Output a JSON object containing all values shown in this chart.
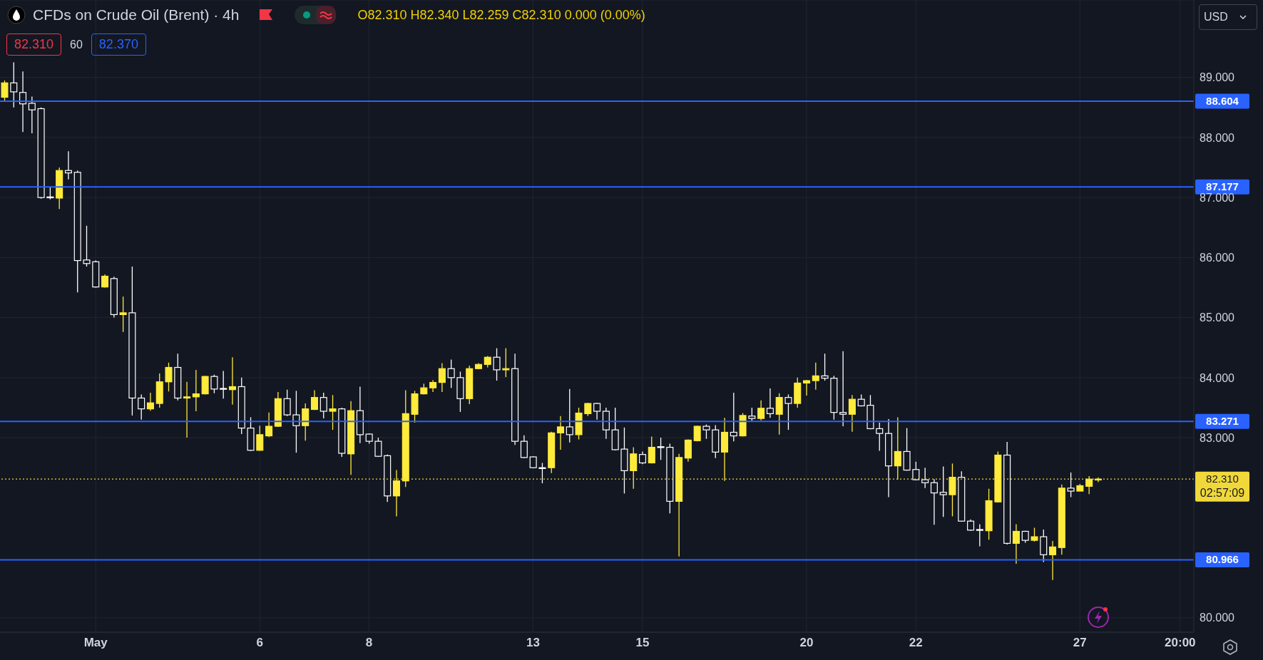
{
  "chart_data": {
    "type": "candlestick",
    "title": "CFDs on Crude Oil (Brent) · 4h",
    "annotations": [
      "O82.310 H82.340 L82.259 C82.310 0.000 (0.00%)",
      "82.310",
      "60",
      "82.370",
      "USD",
      "02:57:09"
    ],
    "categories": [
      null,
      null,
      null,
      null,
      null,
      null,
      null,
      null,
      null,
      null,
      "May",
      null,
      null,
      null,
      null,
      null,
      null,
      null,
      null,
      null,
      null,
      null,
      null,
      null,
      null,
      null,
      null,
      null,
      "6",
      null,
      null,
      null,
      null,
      null,
      null,
      null,
      null,
      null,
      null,
      null,
      "8",
      null,
      null,
      null,
      null,
      null,
      null,
      null,
      null,
      null,
      null,
      null,
      null,
      null,
      null,
      null,
      null,
      null,
      "13",
      null,
      null,
      null,
      null,
      null,
      null,
      null,
      null,
      null,
      null,
      null,
      "15",
      null,
      null,
      null,
      null,
      null,
      null,
      null,
      null,
      null,
      null,
      null,
      null,
      null,
      null,
      null,
      null,
      null,
      "20",
      null,
      null,
      null,
      null,
      null,
      null,
      null,
      null,
      null,
      null,
      null,
      "22",
      null,
      null,
      null,
      null,
      null,
      null,
      null,
      null,
      null,
      null,
      null,
      null,
      null,
      null,
      null,
      null,
      null,
      "27",
      null,
      null,
      null,
      null,
      null,
      null,
      null,
      null,
      null,
      null,
      "20:00",
      null
    ],
    "ohlc": [
      [
        88.67,
        88.95,
        88.6,
        88.91
      ],
      [
        88.91,
        89.25,
        88.5,
        88.76
      ],
      [
        88.75,
        89.1,
        88.09,
        88.56
      ],
      [
        88.57,
        88.68,
        88.07,
        88.46
      ],
      [
        88.48,
        88.5,
        86.98,
        87.0
      ],
      [
        87.01,
        87.18,
        86.97,
        87.0
      ],
      [
        86.99,
        87.5,
        86.81,
        87.45
      ],
      [
        87.45,
        87.77,
        87.3,
        87.41
      ],
      [
        87.42,
        87.45,
        85.42,
        85.95
      ],
      [
        85.96,
        86.53,
        85.85,
        85.9
      ],
      [
        85.93,
        85.95,
        85.5,
        85.51
      ],
      [
        85.51,
        85.72,
        85.5,
        85.69
      ],
      [
        85.65,
        85.68,
        85.0,
        85.05
      ],
      [
        85.05,
        85.35,
        84.76,
        85.08
      ],
      [
        85.08,
        85.85,
        83.37,
        83.66
      ],
      [
        83.66,
        83.72,
        83.3,
        83.48
      ],
      [
        83.48,
        83.75,
        83.45,
        83.58
      ],
      [
        83.57,
        84.07,
        83.5,
        83.93
      ],
      [
        83.93,
        84.25,
        83.77,
        84.17
      ],
      [
        84.17,
        84.4,
        83.62,
        83.66
      ],
      [
        83.66,
        83.93,
        83.0,
        83.68
      ],
      [
        83.68,
        84.13,
        83.44,
        83.73
      ],
      [
        83.73,
        84.03,
        83.72,
        84.02
      ],
      [
        84.02,
        84.05,
        83.74,
        83.81
      ],
      [
        83.82,
        84.11,
        83.65,
        83.81
      ],
      [
        83.8,
        84.34,
        83.55,
        83.85
      ],
      [
        83.85,
        84.0,
        83.06,
        83.16
      ],
      [
        83.16,
        83.34,
        82.78,
        82.79
      ],
      [
        82.79,
        83.2,
        82.78,
        83.05
      ],
      [
        83.03,
        83.42,
        83.01,
        83.19
      ],
      [
        83.19,
        83.76,
        83.18,
        83.65
      ],
      [
        83.65,
        83.8,
        83.36,
        83.38
      ],
      [
        83.38,
        83.78,
        82.75,
        83.2
      ],
      [
        83.2,
        83.57,
        82.95,
        83.48
      ],
      [
        83.47,
        83.79,
        83.46,
        83.67
      ],
      [
        83.67,
        83.75,
        83.32,
        83.44
      ],
      [
        83.44,
        83.71,
        83.13,
        83.48
      ],
      [
        83.48,
        83.5,
        82.68,
        82.74
      ],
      [
        82.73,
        83.61,
        82.38,
        83.45
      ],
      [
        83.45,
        83.85,
        82.91,
        83.05
      ],
      [
        83.06,
        83.07,
        82.9,
        82.94
      ],
      [
        82.94,
        83.0,
        82.68,
        82.69
      ],
      [
        82.7,
        82.72,
        81.93,
        82.03
      ],
      [
        82.03,
        82.46,
        81.69,
        82.28
      ],
      [
        82.28,
        83.79,
        82.18,
        83.4
      ],
      [
        83.39,
        83.78,
        83.25,
        83.73
      ],
      [
        83.73,
        83.9,
        83.72,
        83.83
      ],
      [
        83.83,
        83.96,
        83.76,
        83.92
      ],
      [
        83.92,
        84.24,
        83.76,
        84.15
      ],
      [
        84.15,
        84.3,
        83.83,
        84.0
      ],
      [
        84.0,
        84.1,
        83.43,
        83.65
      ],
      [
        83.65,
        84.2,
        83.56,
        84.15
      ],
      [
        84.15,
        84.24,
        84.14,
        84.22
      ],
      [
        84.22,
        84.36,
        84.17,
        84.34
      ],
      [
        84.34,
        84.49,
        83.95,
        84.13
      ],
      [
        84.13,
        84.49,
        84.01,
        84.15
      ],
      [
        84.15,
        84.4,
        82.88,
        82.94
      ],
      [
        82.94,
        83.04,
        82.66,
        82.67
      ],
      [
        82.68,
        82.69,
        82.49,
        82.5
      ],
      [
        82.5,
        82.58,
        82.24,
        82.49
      ],
      [
        82.5,
        83.1,
        82.41,
        83.08
      ],
      [
        83.08,
        83.36,
        82.8,
        83.18
      ],
      [
        83.18,
        83.81,
        82.92,
        83.05
      ],
      [
        83.05,
        83.5,
        82.97,
        83.41
      ],
      [
        83.4,
        83.58,
        83.36,
        83.57
      ],
      [
        83.57,
        83.58,
        83.3,
        83.44
      ],
      [
        83.44,
        83.5,
        82.98,
        83.13
      ],
      [
        83.13,
        83.5,
        82.79,
        82.8
      ],
      [
        82.81,
        83.17,
        82.07,
        82.45
      ],
      [
        82.45,
        82.84,
        82.15,
        82.73
      ],
      [
        82.72,
        82.77,
        82.56,
        82.58
      ],
      [
        82.58,
        83.02,
        82.57,
        82.84
      ],
      [
        82.85,
        83.0,
        82.63,
        82.84
      ],
      [
        82.84,
        82.9,
        81.74,
        81.94
      ],
      [
        81.94,
        82.73,
        81.02,
        82.67
      ],
      [
        82.66,
        82.97,
        82.6,
        82.96
      ],
      [
        82.95,
        83.2,
        82.94,
        83.19
      ],
      [
        83.19,
        83.22,
        82.98,
        83.13
      ],
      [
        83.13,
        83.21,
        82.66,
        82.76
      ],
      [
        82.76,
        83.33,
        82.28,
        83.09
      ],
      [
        83.09,
        83.75,
        82.94,
        83.03
      ],
      [
        83.03,
        83.41,
        83.02,
        83.37
      ],
      [
        83.36,
        83.5,
        83.28,
        83.32
      ],
      [
        83.32,
        83.62,
        83.29,
        83.49
      ],
      [
        83.49,
        83.82,
        83.33,
        83.4
      ],
      [
        83.39,
        83.74,
        83.05,
        83.67
      ],
      [
        83.67,
        83.72,
        83.13,
        83.57
      ],
      [
        83.57,
        84.0,
        83.5,
        83.91
      ],
      [
        83.91,
        83.96,
        83.7,
        83.95
      ],
      [
        83.95,
        84.25,
        83.8,
        84.03
      ],
      [
        84.03,
        84.4,
        83.95,
        83.99
      ],
      [
        83.99,
        84.03,
        83.3,
        83.42
      ],
      [
        83.42,
        84.44,
        83.19,
        83.39
      ],
      [
        83.39,
        83.71,
        83.1,
        83.64
      ],
      [
        83.64,
        83.72,
        83.52,
        83.53
      ],
      [
        83.54,
        83.71,
        83.14,
        83.15
      ],
      [
        83.15,
        83.25,
        82.78,
        83.07
      ],
      [
        83.07,
        83.31,
        82.01,
        82.53
      ],
      [
        82.53,
        83.34,
        82.3,
        82.77
      ],
      [
        82.77,
        83.16,
        82.45,
        82.46
      ],
      [
        82.47,
        82.6,
        82.29,
        82.3
      ],
      [
        82.3,
        82.5,
        82.16,
        82.25
      ],
      [
        82.25,
        82.31,
        81.55,
        82.08
      ],
      [
        82.09,
        82.52,
        81.68,
        82.05
      ],
      [
        82.05,
        82.57,
        81.69,
        82.34
      ],
      [
        82.34,
        82.44,
        81.6,
        81.61
      ],
      [
        81.61,
        81.64,
        81.45,
        81.46
      ],
      [
        81.47,
        81.56,
        81.19,
        81.46
      ],
      [
        81.45,
        82.15,
        81.3,
        81.95
      ],
      [
        81.93,
        82.77,
        81.92,
        82.71
      ],
      [
        82.71,
        82.93,
        81.22,
        81.24
      ],
      [
        81.24,
        81.56,
        80.9,
        81.44
      ],
      [
        81.44,
        81.45,
        81.25,
        81.29
      ],
      [
        81.29,
        81.5,
        81.27,
        81.35
      ],
      [
        81.35,
        81.47,
        80.93,
        81.05
      ],
      [
        81.05,
        81.28,
        80.63,
        81.18
      ],
      [
        81.17,
        82.22,
        81.05,
        82.16
      ],
      [
        82.16,
        82.42,
        82.01,
        82.11
      ],
      [
        82.11,
        82.23,
        82.11,
        82.2
      ],
      [
        82.19,
        82.36,
        82.06,
        82.31
      ],
      [
        82.31,
        82.34,
        82.259,
        82.31
      ],
      null,
      null,
      null,
      null,
      null,
      null,
      null,
      null,
      null,
      null
    ],
    "colors": [
      "#ffeb3b",
      "#ffffff",
      "#ffffff",
      "#ffffff",
      "#ffffff",
      "#ffffff",
      "#ffeb3b",
      "#ffffff",
      "#ffffff",
      "#ffffff",
      "#ffffff",
      "#ffeb3b",
      "#ffffff",
      "#ffeb3b",
      "#ffffff",
      "#ffffff",
      "#ffeb3b",
      "#ffeb3b",
      "#ffeb3b",
      "#ffffff",
      "#ffeb3b",
      "#ffeb3b",
      "#ffeb3b",
      "#ffffff",
      "#ffffff",
      "#ffeb3b",
      "#ffffff",
      "#ffffff",
      "#ffeb3b",
      "#ffeb3b",
      "#ffeb3b",
      "#ffffff",
      "#ffffff",
      "#ffeb3b",
      "#ffeb3b",
      "#ffffff",
      "#ffeb3b",
      "#ffffff",
      "#ffeb3b",
      "#ffffff",
      "#ffffff",
      "#ffffff",
      "#ffffff",
      "#ffeb3b",
      "#ffeb3b",
      "#ffeb3b",
      "#ffeb3b",
      "#ffeb3b",
      "#ffeb3b",
      "#ffffff",
      "#ffffff",
      "#ffeb3b",
      "#ffeb3b",
      "#ffeb3b",
      "#ffffff",
      "#ffeb3b",
      "#ffffff",
      "#ffffff",
      "#ffffff",
      "#ffffff",
      "#ffeb3b",
      "#ffeb3b",
      "#ffffff",
      "#ffeb3b",
      "#ffeb3b",
      "#ffffff",
      "#ffffff",
      "#ffffff",
      "#ffffff",
      "#ffeb3b",
      "#ffffff",
      "#ffeb3b",
      "#ffffff",
      "#ffffff",
      "#ffeb3b",
      "#ffeb3b",
      "#ffeb3b",
      "#ffffff",
      "#ffffff",
      "#ffeb3b",
      "#ffffff",
      "#ffeb3b",
      "#ffffff",
      "#ffeb3b",
      "#ffffff",
      "#ffeb3b",
      "#ffffff",
      "#ffeb3b",
      "#ffeb3b",
      "#ffeb3b",
      "#ffffff",
      "#ffffff",
      "#ffffff",
      "#ffeb3b",
      "#ffffff",
      "#ffffff",
      "#ffffff",
      "#ffffff",
      "#ffeb3b",
      "#ffffff",
      "#ffffff",
      "#ffffff",
      "#ffffff",
      "#ffffff",
      "#ffeb3b",
      "#ffffff",
      "#ffffff",
      "#ffffff",
      "#ffeb3b",
      "#ffeb3b",
      "#ffffff",
      "#ffeb3b",
      "#ffffff",
      "#ffeb3b",
      "#ffffff",
      "#ffeb3b",
      "#ffeb3b",
      "#ffffff",
      "#ffeb3b",
      "#ffeb3b",
      "#ffeb3b",
      null,
      null,
      null,
      null,
      null,
      null,
      null,
      null,
      null,
      null
    ],
    "ylim": [
      79.76,
      90.29
    ],
    "yticks": [
      {
        "value": 80,
        "label": "80.000"
      },
      {
        "value": 83,
        "label": "83.000"
      },
      {
        "value": 84,
        "label": "84.000"
      },
      {
        "value": 85,
        "label": "85.000"
      },
      {
        "value": 86,
        "label": "86.000"
      },
      {
        "value": 87,
        "label": "87.000"
      },
      {
        "value": 88,
        "label": "88.000"
      },
      {
        "value": 89,
        "label": "89.000"
      }
    ],
    "grid": true,
    "ref_lines": [
      {
        "axis": "y",
        "value": 88.604,
        "label": "88.604",
        "color": "#2962ff",
        "line_style": "solid"
      },
      {
        "axis": "y",
        "value": 87.177,
        "label": "87.177",
        "color": "#2962ff",
        "line_style": "solid"
      },
      {
        "axis": "y",
        "value": 83.271,
        "label": "83.271",
        "color": "#2962ff",
        "line_style": "solid"
      },
      {
        "axis": "y",
        "value": 80.966,
        "label": "80.966",
        "color": "#2962ff",
        "line_style": "solid"
      },
      {
        "axis": "y",
        "value": 82.31,
        "label": "82.310",
        "color": "#f0d83a",
        "line_style": "dotted"
      }
    ]
  }
}
